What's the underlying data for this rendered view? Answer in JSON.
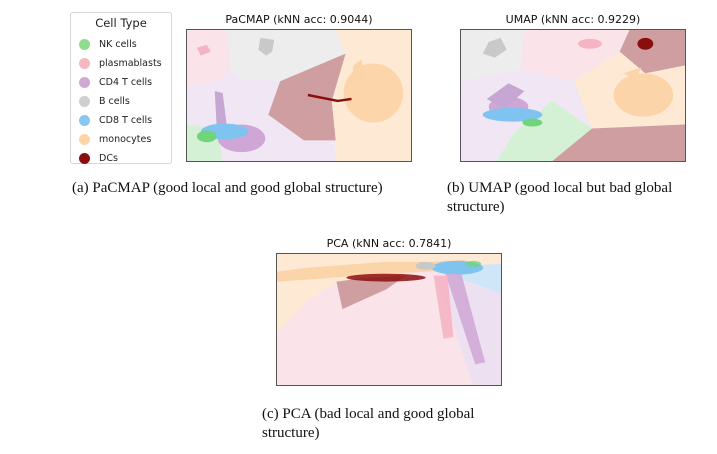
{
  "legend": {
    "title": "Cell Type",
    "items": [
      {
        "label": "NK cells",
        "color": "#8fdc8f"
      },
      {
        "label": "plasmablasts",
        "color": "#f6b7c0"
      },
      {
        "label": "CD4 T cells",
        "color": "#cfa9d4"
      },
      {
        "label": "B cells",
        "color": "#cfcfcf"
      },
      {
        "label": "CD8 T cells",
        "color": "#86c8f2"
      },
      {
        "label": "monocytes",
        "color": "#fbd5a8"
      },
      {
        "label": "DCs",
        "color": "#8b0e0e"
      }
    ]
  },
  "panels": {
    "pacmap": {
      "title": "PaCMAP (kNN acc: 0.9044)",
      "caption": "(a)  PaCMAP (good local and good global structure)"
    },
    "umap": {
      "title": "UMAP (kNN acc: 0.9229)",
      "caption_line1": "(b)  UMAP (good local but bad global",
      "caption_line2": "structure)"
    },
    "pca": {
      "title": "PCA (kNN acc: 0.7841)",
      "caption_line1": "(c)  PCA (bad local and good global",
      "caption_line2": "structure)"
    }
  }
}
